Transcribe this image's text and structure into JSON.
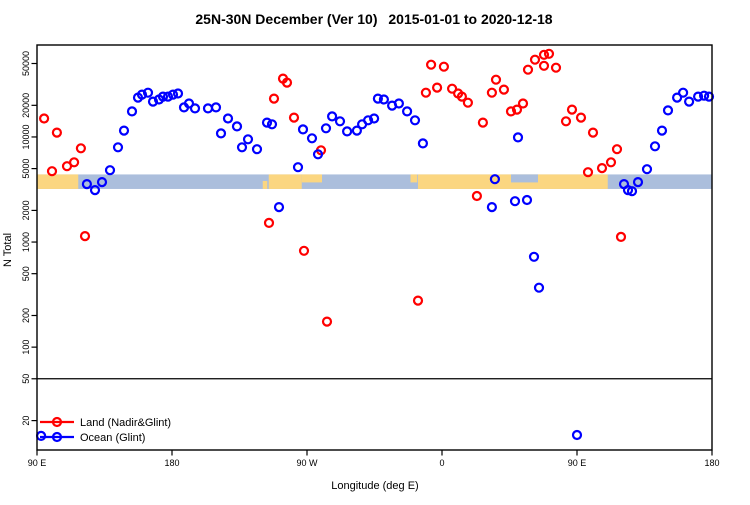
{
  "chart_data": {
    "type": "scatter",
    "title": "25N-30N December (Ver 10)  2015-01-01 to 2020-12-18",
    "xlabel": "Longitude (deg E)",
    "ylabel": "N Total",
    "x_axis": {
      "range": [
        90,
        540
      ],
      "ticks": [
        90,
        180,
        270,
        360,
        450,
        540
      ],
      "tick_labels": [
        "90 E",
        "180",
        "90 W",
        "0",
        "90 E",
        "180"
      ]
    },
    "y_axis": {
      "scale": "log",
      "range": [
        10.5,
        75000
      ],
      "ticks": [
        20,
        50,
        100,
        200,
        500,
        1000,
        2000,
        5000,
        10000,
        20000,
        50000
      ],
      "tick_labels": [
        "20",
        "50",
        "100",
        "200",
        "500",
        "1000",
        "2000",
        "5000",
        "10000",
        "20000",
        "50000"
      ]
    },
    "threshold_line_n": 50,
    "map_band": {
      "n_top": 4400,
      "n_bottom": 3200,
      "ocean_color": "#ABBEDC",
      "land_color": "#FBD681",
      "land_segments": [
        {
          "from": 90,
          "to": 117.5,
          "part": "full"
        },
        {
          "from": 240.5,
          "to": 243.5,
          "part": "lower"
        },
        {
          "from": 244.5,
          "to": 266.5,
          "part": "full"
        },
        {
          "from": 266.5,
          "to": 280,
          "part": "upper"
        },
        {
          "from": 339,
          "to": 343.5,
          "part": "upper"
        },
        {
          "from": 344,
          "to": 470.5,
          "part": "full"
        },
        {
          "from": 477.5,
          "to": 540,
          "part": "none"
        }
      ],
      "ocean_patches": [
        {
          "from": 406,
          "to": 424,
          "part": "upper"
        }
      ]
    },
    "series": [
      {
        "name": "Land (Nadir&Glint)",
        "color": "#FF0000",
        "points": [
          [
            94.7,
            15000
          ],
          [
            103.3,
            11000
          ],
          [
            119.3,
            7800
          ],
          [
            100,
            4720
          ],
          [
            110,
            5270
          ],
          [
            114.7,
            5740
          ],
          [
            122,
            1140
          ],
          [
            254,
            35900
          ],
          [
            256.7,
            32900
          ],
          [
            248,
            23200
          ],
          [
            261.3,
            15300
          ],
          [
            279.3,
            7460
          ],
          [
            244.7,
            1520
          ],
          [
            268,
            826
          ],
          [
            283.3,
            175
          ],
          [
            344,
            277
          ],
          [
            352.7,
            48700
          ],
          [
            361.3,
            46600
          ],
          [
            349.3,
            26400
          ],
          [
            356.7,
            29500
          ],
          [
            366.7,
            28800
          ],
          [
            370.7,
            25900
          ],
          [
            373.3,
            24200
          ],
          [
            377.3,
            21200
          ],
          [
            387.3,
            13700
          ],
          [
            383.3,
            2740
          ],
          [
            396,
            35100
          ],
          [
            393.3,
            26400
          ],
          [
            401.3,
            28200
          ],
          [
            406,
            17500
          ],
          [
            410,
            18200
          ],
          [
            414,
            20800
          ],
          [
            417.3,
            43700
          ],
          [
            422,
            54300
          ],
          [
            428,
            60500
          ],
          [
            431.3,
            61900
          ],
          [
            428,
            47600
          ],
          [
            436,
            45600
          ],
          [
            442.7,
            14100
          ],
          [
            446.7,
            18200
          ],
          [
            452.7,
            15300
          ],
          [
            457.3,
            4620
          ],
          [
            460.7,
            11000
          ],
          [
            466.7,
            5050
          ],
          [
            472.7,
            5740
          ],
          [
            476.7,
            7640
          ],
          [
            479.3,
            1120
          ]
        ]
      },
      {
        "name": "Ocean (Glint)",
        "color": "#0000FF",
        "points": [
          [
            92.7,
            14.3
          ],
          [
            123.3,
            3560
          ],
          [
            128.7,
            3120
          ],
          [
            133.3,
            3720
          ],
          [
            138.7,
            4830
          ],
          [
            144,
            7980
          ],
          [
            148,
            11500
          ],
          [
            153.3,
            17500
          ],
          [
            157.3,
            23700
          ],
          [
            160,
            25300
          ],
          [
            164,
            26400
          ],
          [
            167.3,
            21700
          ],
          [
            171.3,
            22700
          ],
          [
            174,
            24200
          ],
          [
            177.3,
            24200
          ],
          [
            180.7,
            25300
          ],
          [
            184,
            25900
          ],
          [
            188,
            19100
          ],
          [
            191.3,
            20800
          ],
          [
            195.3,
            18700
          ],
          [
            204,
            18700
          ],
          [
            209.3,
            19100
          ],
          [
            212.7,
            10800
          ],
          [
            217.3,
            15000
          ],
          [
            223.3,
            12600
          ],
          [
            226.7,
            7980
          ],
          [
            230.7,
            9490
          ],
          [
            236.7,
            7640
          ],
          [
            243.3,
            13700
          ],
          [
            246.7,
            13200
          ],
          [
            251.3,
            2150
          ],
          [
            264,
            5150
          ],
          [
            267.3,
            11800
          ],
          [
            273.3,
            9700
          ],
          [
            277.3,
            6840
          ],
          [
            282.7,
            12100
          ],
          [
            286.7,
            15700
          ],
          [
            292,
            14100
          ],
          [
            296.7,
            11300
          ],
          [
            303.3,
            11500
          ],
          [
            306.7,
            13200
          ],
          [
            310.7,
            14400
          ],
          [
            314.7,
            15000
          ],
          [
            317.3,
            23200
          ],
          [
            321.3,
            22700
          ],
          [
            326.7,
            19900
          ],
          [
            331.3,
            20800
          ],
          [
            336.7,
            17500
          ],
          [
            342,
            14400
          ],
          [
            347.3,
            8690
          ],
          [
            393.3,
            2150
          ],
          [
            395.3,
            3960
          ],
          [
            408.7,
            2450
          ],
          [
            410.7,
            9900
          ],
          [
            416.7,
            2510
          ],
          [
            421.3,
            724
          ],
          [
            424.7,
            368
          ],
          [
            450,
            14.6
          ],
          [
            481.3,
            3560
          ],
          [
            484,
            3120
          ],
          [
            486.7,
            3050
          ],
          [
            490.7,
            3720
          ],
          [
            496.7,
            4930
          ],
          [
            502,
            8150
          ],
          [
            506.7,
            11500
          ],
          [
            510.7,
            17900
          ],
          [
            516.7,
            23700
          ],
          [
            520.7,
            26400
          ],
          [
            524.7,
            21700
          ],
          [
            530.7,
            24200
          ],
          [
            534.7,
            24700
          ],
          [
            538,
            24200
          ]
        ]
      }
    ],
    "legend": {
      "position": "bottom-left",
      "entries": [
        "Land (Nadir&Glint)",
        "Ocean (Glint)"
      ]
    },
    "marker": {
      "shape": "open-circle",
      "radius": 4,
      "stroke_width": 2.2
    }
  }
}
